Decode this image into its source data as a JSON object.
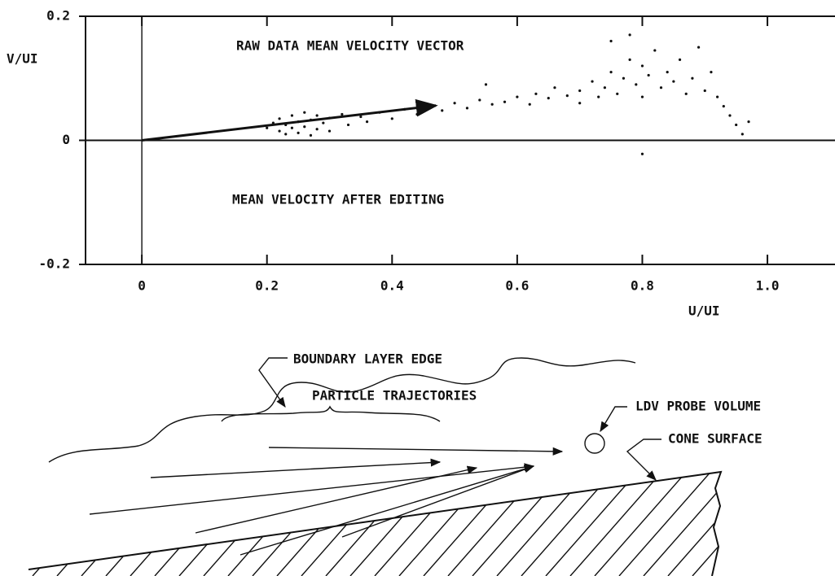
{
  "chart_data": {
    "type": "scatter",
    "annotations": [
      "RAW DATA MEAN VELOCITY VECTOR",
      "MEAN VELOCITY AFTER EDITING"
    ],
    "xlabel": "U/UI",
    "ylabel": "V/UI",
    "xlim": [
      -0.09,
      1.108
    ],
    "ylim": [
      -0.2,
      0.2
    ],
    "xticks": [
      0,
      0.2,
      0.4,
      0.6,
      0.8,
      {
        "value": 1,
        "label": "1.0"
      }
    ],
    "yticks": [
      -0.2,
      0,
      0.2
    ],
    "color": "#111111",
    "x": [
      0.2,
      0.21,
      0.22,
      0.22,
      0.23,
      0.23,
      0.24,
      0.24,
      0.25,
      0.25,
      0.26,
      0.26,
      0.27,
      0.27,
      0.28,
      0.28,
      0.29,
      0.3,
      0.3,
      0.32,
      0.33,
      0.35,
      0.36,
      0.38,
      0.4,
      0.42,
      0.44,
      0.46,
      0.48,
      0.5,
      0.52,
      0.54,
      0.56,
      0.58,
      0.6,
      0.62,
      0.63,
      0.65,
      0.66,
      0.68,
      0.7,
      0.7,
      0.72,
      0.73,
      0.74,
      0.75,
      0.76,
      0.77,
      0.78,
      0.79,
      0.8,
      0.8,
      0.81,
      0.82,
      0.83,
      0.84,
      0.85,
      0.86,
      0.87,
      0.88,
      0.89,
      0.9,
      0.91,
      0.92,
      0.93,
      0.94,
      0.95,
      0.96,
      0.97,
      0.75,
      0.78,
      0.55,
      0.8
    ],
    "values": [
      0.02,
      0.028,
      0.015,
      0.035,
      0.025,
      0.01,
      0.04,
      0.02,
      0.03,
      0.012,
      0.045,
      0.022,
      0.033,
      0.008,
      0.04,
      0.018,
      0.028,
      0.036,
      0.015,
      0.042,
      0.025,
      0.038,
      0.03,
      0.045,
      0.035,
      0.05,
      0.042,
      0.055,
      0.048,
      0.06,
      0.052,
      0.065,
      0.058,
      0.062,
      0.07,
      0.058,
      0.075,
      0.068,
      0.085,
      0.072,
      0.08,
      0.06,
      0.095,
      0.07,
      0.085,
      0.11,
      0.075,
      0.1,
      0.13,
      0.09,
      0.12,
      0.07,
      0.105,
      0.145,
      0.085,
      0.11,
      0.095,
      0.13,
      0.075,
      0.1,
      0.15,
      0.08,
      0.11,
      0.07,
      0.055,
      0.04,
      0.025,
      0.01,
      0.03,
      0.16,
      0.17,
      0.09,
      -0.022
    ],
    "mean_vector": {
      "x": 0.47,
      "y": 0.056
    }
  },
  "diagram": {
    "labels": [
      "BOUNDARY LAYER EDGE",
      "LDV PROBE VOLUME",
      "PARTICLE TRAJECTORIES",
      "CONE SURFACE"
    ]
  }
}
